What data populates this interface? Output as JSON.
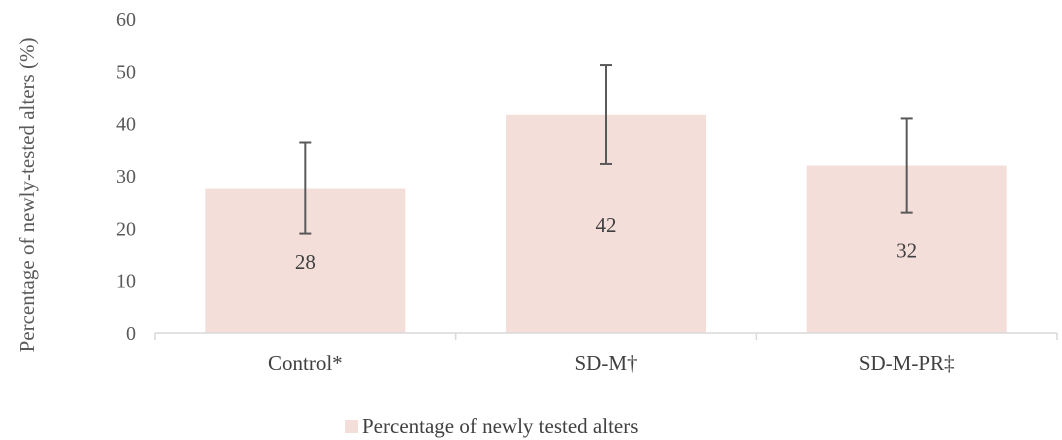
{
  "chart_data": {
    "type": "bar",
    "title": "",
    "xlabel": "",
    "ylabel": "Percentage of newly-tested alters (%)",
    "ylim": [
      0,
      60
    ],
    "yticks": [
      "0",
      "10",
      "20",
      "30",
      "40",
      "50",
      "60"
    ],
    "categories": [
      "Control*",
      "SD-M†",
      "SD-M-PR‡"
    ],
    "series": [
      {
        "name": "Percentage of newly tested alters",
        "values": [
          27.6,
          41.7,
          32.0
        ],
        "data_labels": [
          "28",
          "42",
          "32"
        ],
        "error_low": [
          19.0,
          32.3,
          23.0
        ],
        "error_high": [
          36.4,
          51.2,
          41.0
        ],
        "color": "#f4ded9"
      }
    ],
    "legend_position": "bottom",
    "grid": false,
    "error_bar_color": "#595959",
    "axis_color": "#d9d9d9"
  }
}
